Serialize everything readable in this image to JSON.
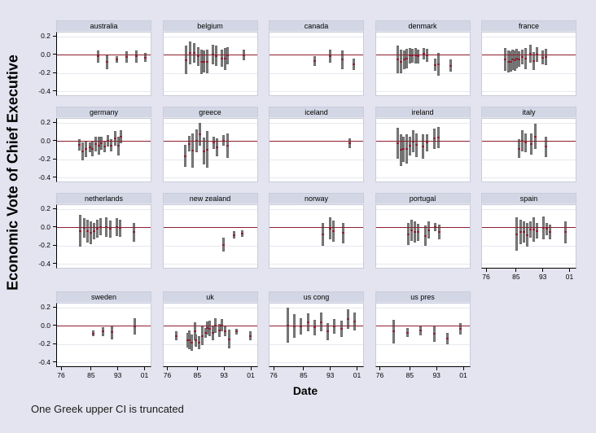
{
  "figure": {
    "ylabel": "Economic Vote of Chief Executive",
    "xlabel": "Date",
    "note": "One Greek upper CI is truncated"
  },
  "chart_data": {
    "type": "scatter",
    "style": "small-multiples vertical confidence-interval bars with point estimates and zero reference line",
    "xlabel": "Date",
    "ylabel": "Economic Vote of Chief Executive",
    "note": "One Greek upper CI is truncated",
    "xlim": [
      74.5,
      103.1
    ],
    "ylim": [
      -0.45,
      0.25
    ],
    "grid": true,
    "legend": "none",
    "y_ticks": [
      {
        "label": "0.2",
        "value": 0.2
      },
      {
        "label": "0.0",
        "value": 0.0
      },
      {
        "label": "-0.2",
        "value": -0.2
      },
      {
        "label": "-0.4",
        "value": -0.4
      }
    ],
    "x_ticks": [
      {
        "label": "76",
        "value": 76
      },
      {
        "label": "85",
        "value": 85
      },
      {
        "label": "93",
        "value": 93
      },
      {
        "label": "01",
        "value": 101
      }
    ],
    "bar_format": "[date, ci_low, ci_high]",
    "panels": [
      {
        "name": "australia",
        "bars": [
          [
            86.8,
            -0.08,
            0.05
          ],
          [
            89.5,
            -0.15,
            0.0
          ],
          [
            92.4,
            -0.08,
            -0.01
          ],
          [
            95.5,
            -0.08,
            0.04
          ],
          [
            98.4,
            -0.08,
            0.05
          ],
          [
            100.9,
            -0.07,
            0.02
          ]
        ]
      },
      {
        "name": "belgium",
        "bars": [
          [
            81.3,
            -0.21,
            0.1
          ],
          [
            82.6,
            -0.1,
            0.15
          ],
          [
            83.9,
            -0.08,
            0.13
          ],
          [
            85.1,
            -0.12,
            0.09
          ],
          [
            86.0,
            -0.21,
            0.06
          ],
          [
            86.8,
            -0.19,
            0.05
          ],
          [
            87.7,
            -0.2,
            0.06
          ],
          [
            89.4,
            -0.1,
            0.11
          ],
          [
            90.4,
            -0.12,
            0.1
          ],
          [
            92.2,
            -0.13,
            0.06
          ],
          [
            93.0,
            -0.16,
            0.08
          ],
          [
            93.7,
            -0.1,
            0.09
          ],
          [
            98.8,
            -0.06,
            0.06
          ]
        ]
      },
      {
        "name": "canada",
        "bars": [
          [
            88.1,
            -0.12,
            -0.01
          ],
          [
            92.6,
            -0.08,
            0.06
          ],
          [
            96.3,
            -0.15,
            0.05
          ],
          [
            99.8,
            -0.16,
            -0.04
          ]
        ]
      },
      {
        "name": "denmark",
        "bars": [
          [
            81.0,
            -0.2,
            0.1
          ],
          [
            82.0,
            -0.2,
            0.06
          ],
          [
            83.0,
            -0.15,
            0.05
          ],
          [
            83.9,
            -0.14,
            0.07
          ],
          [
            84.7,
            -0.09,
            0.08
          ],
          [
            85.6,
            -0.08,
            0.07
          ],
          [
            86.4,
            -0.09,
            0.08
          ],
          [
            87.3,
            -0.09,
            0.06
          ],
          [
            88.9,
            -0.05,
            0.08
          ],
          [
            89.9,
            -0.07,
            0.07
          ],
          [
            92.3,
            -0.17,
            -0.04
          ],
          [
            93.4,
            -0.22,
            0.02
          ],
          [
            96.9,
            -0.18,
            -0.05
          ]
        ]
      },
      {
        "name": "france",
        "bars": [
          [
            81.4,
            -0.17,
            0.08
          ],
          [
            82.5,
            -0.19,
            0.05
          ],
          [
            83.1,
            -0.18,
            0.04
          ],
          [
            83.7,
            -0.16,
            0.06
          ],
          [
            84.3,
            -0.17,
            0.05
          ],
          [
            85.0,
            -0.14,
            0.07
          ],
          [
            85.7,
            -0.13,
            0.04
          ],
          [
            86.5,
            -0.1,
            0.06
          ],
          [
            87.6,
            -0.15,
            0.08
          ],
          [
            89.1,
            -0.08,
            0.11
          ],
          [
            90.1,
            -0.16,
            0.03
          ],
          [
            91.1,
            -0.07,
            0.09
          ],
          [
            92.8,
            -0.1,
            0.05
          ],
          [
            93.7,
            -0.11,
            0.07
          ]
        ]
      },
      {
        "name": "germany",
        "bars": [
          [
            81.2,
            -0.1,
            0.02
          ],
          [
            82.3,
            -0.21,
            -0.01
          ],
          [
            83.3,
            -0.17,
            0.01
          ],
          [
            84.3,
            -0.12,
            -0.01
          ],
          [
            85.2,
            -0.16,
            0.0
          ],
          [
            86.1,
            -0.11,
            0.05
          ],
          [
            87.0,
            -0.14,
            0.05
          ],
          [
            87.9,
            -0.09,
            0.05
          ],
          [
            88.9,
            -0.12,
            0.01
          ],
          [
            89.7,
            -0.06,
            0.07
          ],
          [
            90.7,
            -0.11,
            0.02
          ],
          [
            91.9,
            -0.05,
            0.11
          ],
          [
            93.0,
            -0.15,
            0.05
          ],
          [
            93.8,
            -0.02,
            0.12
          ]
        ]
      },
      {
        "name": "greece",
        "bars": [
          [
            81.2,
            -0.28,
            -0.04
          ],
          [
            82.4,
            -0.11,
            0.06
          ],
          [
            83.4,
            -0.29,
            0.09
          ],
          [
            84.5,
            -0.12,
            0.13
          ],
          [
            85.6,
            -0.05,
            0.2
          ],
          [
            86.7,
            -0.25,
            0.04
          ],
          [
            87.8,
            -0.29,
            0.11
          ],
          [
            89.7,
            -0.08,
            0.05
          ],
          [
            90.7,
            -0.16,
            0.03
          ],
          [
            92.7,
            -0.05,
            0.07
          ],
          [
            93.7,
            -0.18,
            0.09
          ]
        ]
      },
      {
        "name": "iceland",
        "bars": [
          [
            98.5,
            -0.07,
            0.03
          ]
        ]
      },
      {
        "name": "ireland",
        "bars": [
          [
            81.0,
            -0.19,
            0.15
          ],
          [
            82.0,
            -0.27,
            0.08
          ],
          [
            82.9,
            -0.22,
            0.05
          ],
          [
            83.9,
            -0.24,
            0.08
          ],
          [
            84.8,
            -0.15,
            0.05
          ],
          [
            85.8,
            -0.12,
            0.12
          ],
          [
            86.8,
            -0.17,
            0.09
          ],
          [
            88.8,
            -0.19,
            0.08
          ],
          [
            89.8,
            -0.11,
            0.08
          ],
          [
            92.2,
            -0.08,
            0.14
          ],
          [
            93.2,
            -0.07,
            0.16
          ]
        ]
      },
      {
        "name": "italy",
        "bars": [
          [
            85.6,
            -0.18,
            0.02
          ],
          [
            86.6,
            -0.11,
            0.12
          ],
          [
            87.6,
            -0.12,
            0.09
          ],
          [
            89.4,
            -0.14,
            0.09
          ],
          [
            90.5,
            -0.08,
            0.19
          ],
          [
            93.8,
            -0.17,
            0.05
          ]
        ]
      },
      {
        "name": "netherlands",
        "bars": [
          [
            81.5,
            -0.21,
            0.14
          ],
          [
            82.8,
            -0.11,
            0.1
          ],
          [
            83.7,
            -0.16,
            0.09
          ],
          [
            84.7,
            -0.18,
            0.07
          ],
          [
            85.7,
            -0.13,
            0.05
          ],
          [
            86.6,
            -0.11,
            0.09
          ],
          [
            87.6,
            -0.08,
            0.1
          ],
          [
            89.3,
            -0.1,
            0.11
          ],
          [
            90.4,
            -0.11,
            0.08
          ],
          [
            92.4,
            -0.09,
            0.1
          ],
          [
            93.4,
            -0.1,
            0.09
          ],
          [
            97.5,
            -0.15,
            0.05
          ]
        ]
      },
      {
        "name": "new zealand",
        "bars": [
          [
            92.7,
            -0.26,
            -0.11
          ],
          [
            95.7,
            -0.12,
            -0.04
          ],
          [
            98.2,
            -0.1,
            -0.03
          ]
        ]
      },
      {
        "name": "norway",
        "bars": [
          [
            90.5,
            -0.2,
            0.05
          ],
          [
            92.6,
            -0.13,
            0.11
          ],
          [
            93.7,
            -0.15,
            0.08
          ],
          [
            96.5,
            -0.17,
            0.05
          ]
        ]
      },
      {
        "name": "portugal",
        "bars": [
          [
            84.2,
            -0.19,
            0.05
          ],
          [
            85.2,
            -0.14,
            0.09
          ],
          [
            86.2,
            -0.16,
            0.07
          ],
          [
            87.2,
            -0.14,
            0.04
          ],
          [
            89.4,
            -0.2,
            0.02
          ],
          [
            90.4,
            -0.12,
            0.07
          ],
          [
            92.4,
            -0.04,
            0.05
          ],
          [
            93.5,
            -0.13,
            0.03
          ]
        ]
      },
      {
        "name": "spain",
        "bars": [
          [
            85.0,
            -0.25,
            0.11
          ],
          [
            86.1,
            -0.18,
            0.09
          ],
          [
            87.1,
            -0.16,
            0.07
          ],
          [
            88.1,
            -0.21,
            0.05
          ],
          [
            89.1,
            -0.11,
            0.07
          ],
          [
            90.1,
            -0.15,
            0.11
          ],
          [
            91.1,
            -0.12,
            0.05
          ],
          [
            92.9,
            -0.13,
            0.12
          ],
          [
            94.0,
            -0.08,
            0.05
          ],
          [
            95.0,
            -0.13,
            0.03
          ],
          [
            99.6,
            -0.17,
            0.07
          ]
        ]
      },
      {
        "name": "sweden",
        "bars": [
          [
            85.3,
            -0.11,
            -0.05
          ],
          [
            88.3,
            -0.11,
            -0.01
          ],
          [
            90.9,
            -0.14,
            0.01
          ],
          [
            97.9,
            -0.09,
            0.09
          ]
        ]
      },
      {
        "name": "uk",
        "bars": [
          [
            78.4,
            -0.15,
            -0.06
          ],
          [
            81.8,
            -0.23,
            -0.07
          ],
          [
            82.4,
            -0.25,
            -0.05
          ],
          [
            83.0,
            -0.27,
            -0.09
          ],
          [
            84.0,
            -0.15,
            0.04
          ],
          [
            84.4,
            -0.22,
            -0.09
          ],
          [
            85.3,
            -0.25,
            -0.11
          ],
          [
            86.3,
            -0.21,
            0.0
          ],
          [
            87.1,
            -0.13,
            -0.02
          ],
          [
            87.7,
            -0.09,
            0.05
          ],
          [
            88.5,
            -0.11,
            0.06
          ],
          [
            89.5,
            -0.15,
            0.0
          ],
          [
            90.1,
            -0.07,
            0.09
          ],
          [
            91.3,
            -0.12,
            0.02
          ],
          [
            92.1,
            -0.06,
            0.08
          ],
          [
            93.1,
            -0.11,
            0.0
          ],
          [
            94.2,
            -0.24,
            -0.04
          ],
          [
            96.6,
            -0.09,
            -0.03
          ],
          [
            100.6,
            -0.15,
            -0.06
          ]
        ]
      },
      {
        "name": "us cong",
        "bars": [
          [
            80.0,
            -0.18,
            0.2
          ],
          [
            82.0,
            -0.13,
            0.13
          ],
          [
            84.0,
            -0.09,
            0.09
          ],
          [
            86.0,
            -0.06,
            0.14
          ],
          [
            88.0,
            -0.1,
            0.07
          ],
          [
            90.0,
            -0.06,
            0.15
          ],
          [
            92.0,
            -0.15,
            0.03
          ],
          [
            94.0,
            -0.08,
            0.08
          ],
          [
            96.0,
            -0.12,
            0.06
          ],
          [
            98.0,
            -0.03,
            0.18
          ],
          [
            100.0,
            -0.05,
            0.15
          ]
        ]
      },
      {
        "name": "us pres",
        "bars": [
          [
            80.0,
            -0.19,
            0.07
          ],
          [
            84.0,
            -0.12,
            -0.02
          ],
          [
            88.0,
            -0.1,
            0.0
          ],
          [
            92.0,
            -0.17,
            0.01
          ],
          [
            96.0,
            -0.2,
            -0.07
          ],
          [
            100.0,
            -0.09,
            0.03
          ]
        ]
      }
    ]
  },
  "colors": {
    "background": "#e3e4ef",
    "panel_header": "#d3d7e5",
    "plot_background": "#ffffff",
    "gridline": "#e7e7f0",
    "zero_line": "#8b1e2e",
    "ci_bar": "#7d7d7d",
    "point_estimate": "#8b2232",
    "axis": "#000000"
  }
}
